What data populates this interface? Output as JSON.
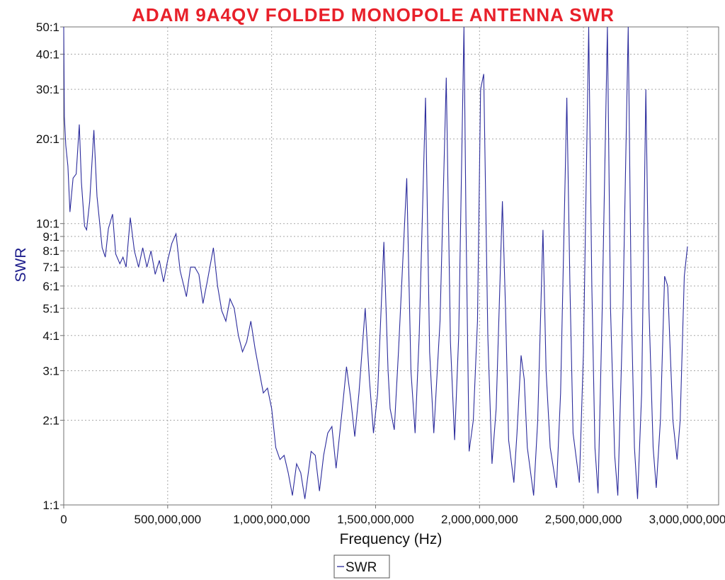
{
  "chart_data": {
    "type": "line",
    "title": "ADAM 9A4QV FOLDED MONOPOLE ANTENNA SWR",
    "xlabel": "Frequency (Hz)",
    "ylabel": "SWR",
    "x_scale": "linear",
    "y_scale": "log",
    "xlim": [
      0,
      3150000000
    ],
    "ylim": [
      1,
      50
    ],
    "grid": true,
    "legend_position": "bottom-center",
    "line_color": "#2b2b9c",
    "x_ticks": [
      {
        "value": 0,
        "label": "0"
      },
      {
        "value": 500000000,
        "label": "500,000,000"
      },
      {
        "value": 1000000000,
        "label": "1,000,000,000"
      },
      {
        "value": 1500000000,
        "label": "1,500,000,000"
      },
      {
        "value": 2000000000,
        "label": "2,000,000,000"
      },
      {
        "value": 2500000000,
        "label": "2,500,000,000"
      },
      {
        "value": 3000000000,
        "label": "3,000,000,000"
      }
    ],
    "y_ticks": [
      {
        "value": 1,
        "label": "1:1"
      },
      {
        "value": 2,
        "label": "2:1"
      },
      {
        "value": 3,
        "label": "3:1"
      },
      {
        "value": 4,
        "label": "4:1"
      },
      {
        "value": 5,
        "label": "5:1"
      },
      {
        "value": 6,
        "label": "6:1"
      },
      {
        "value": 7,
        "label": "7:1"
      },
      {
        "value": 8,
        "label": "8:1"
      },
      {
        "value": 9,
        "label": "9:1"
      },
      {
        "value": 10,
        "label": "10:1"
      },
      {
        "value": 20,
        "label": "20:1"
      },
      {
        "value": 30,
        "label": "30:1"
      },
      {
        "value": 40,
        "label": "40:1"
      },
      {
        "value": 50,
        "label": "50:1"
      }
    ],
    "series": [
      {
        "name": "SWR",
        "points": [
          [
            0,
            50
          ],
          [
            3000000,
            24
          ],
          [
            10000000,
            19
          ],
          [
            20000000,
            16
          ],
          [
            30000000,
            11
          ],
          [
            45000000,
            14.5
          ],
          [
            60000000,
            15
          ],
          [
            75000000,
            22.5
          ],
          [
            85000000,
            14
          ],
          [
            100000000,
            9.8
          ],
          [
            110000000,
            9.5
          ],
          [
            125000000,
            12
          ],
          [
            145000000,
            21.5
          ],
          [
            160000000,
            12.5
          ],
          [
            185000000,
            8.2
          ],
          [
            200000000,
            7.6
          ],
          [
            215000000,
            9.6
          ],
          [
            235000000,
            10.8
          ],
          [
            250000000,
            7.8
          ],
          [
            270000000,
            7.2
          ],
          [
            285000000,
            7.6
          ],
          [
            300000000,
            7.0
          ],
          [
            320000000,
            10.5
          ],
          [
            340000000,
            8.0
          ],
          [
            360000000,
            7.0
          ],
          [
            380000000,
            8.2
          ],
          [
            400000000,
            7.0
          ],
          [
            420000000,
            8.0
          ],
          [
            440000000,
            6.6
          ],
          [
            460000000,
            7.4
          ],
          [
            480000000,
            6.2
          ],
          [
            500000000,
            7.4
          ],
          [
            520000000,
            8.5
          ],
          [
            540000000,
            9.2
          ],
          [
            560000000,
            6.8
          ],
          [
            590000000,
            5.5
          ],
          [
            610000000,
            7.0
          ],
          [
            630000000,
            7.0
          ],
          [
            650000000,
            6.6
          ],
          [
            670000000,
            5.2
          ],
          [
            690000000,
            6.2
          ],
          [
            720000000,
            8.2
          ],
          [
            740000000,
            6.0
          ],
          [
            760000000,
            4.9
          ],
          [
            780000000,
            4.5
          ],
          [
            800000000,
            5.4
          ],
          [
            820000000,
            5.0
          ],
          [
            840000000,
            4.0
          ],
          [
            860000000,
            3.5
          ],
          [
            880000000,
            3.8
          ],
          [
            900000000,
            4.5
          ],
          [
            920000000,
            3.6
          ],
          [
            940000000,
            3.0
          ],
          [
            960000000,
            2.5
          ],
          [
            980000000,
            2.6
          ],
          [
            1000000000,
            2.2
          ],
          [
            1020000000,
            1.6
          ],
          [
            1040000000,
            1.45
          ],
          [
            1060000000,
            1.5
          ],
          [
            1080000000,
            1.3
          ],
          [
            1100000000,
            1.08
          ],
          [
            1120000000,
            1.4
          ],
          [
            1140000000,
            1.3
          ],
          [
            1160000000,
            1.05
          ],
          [
            1190000000,
            1.55
          ],
          [
            1210000000,
            1.5
          ],
          [
            1230000000,
            1.12
          ],
          [
            1250000000,
            1.5
          ],
          [
            1270000000,
            1.8
          ],
          [
            1290000000,
            1.9
          ],
          [
            1310000000,
            1.35
          ],
          [
            1340000000,
            2.2
          ],
          [
            1360000000,
            3.1
          ],
          [
            1380000000,
            2.4
          ],
          [
            1400000000,
            1.75
          ],
          [
            1420000000,
            2.5
          ],
          [
            1450000000,
            5.0
          ],
          [
            1470000000,
            2.8
          ],
          [
            1490000000,
            1.8
          ],
          [
            1510000000,
            2.5
          ],
          [
            1540000000,
            8.6
          ],
          [
            1560000000,
            3.0
          ],
          [
            1570000000,
            2.2
          ],
          [
            1590000000,
            1.85
          ],
          [
            1610000000,
            3.5
          ],
          [
            1650000000,
            14.5
          ],
          [
            1670000000,
            3.0
          ],
          [
            1690000000,
            1.8
          ],
          [
            1710000000,
            4.0
          ],
          [
            1740000000,
            28
          ],
          [
            1760000000,
            3.5
          ],
          [
            1780000000,
            1.8
          ],
          [
            1810000000,
            4.5
          ],
          [
            1840000000,
            33
          ],
          [
            1860000000,
            3.8
          ],
          [
            1880000000,
            1.7
          ],
          [
            1900000000,
            4.0
          ],
          [
            1925000000,
            50
          ],
          [
            1935000000,
            10
          ],
          [
            1950000000,
            1.55
          ],
          [
            1970000000,
            2.0
          ],
          [
            1990000000,
            4.5
          ],
          [
            2005000000,
            30
          ],
          [
            2020000000,
            34
          ],
          [
            2040000000,
            4.0
          ],
          [
            2060000000,
            1.4
          ],
          [
            2080000000,
            2.2
          ],
          [
            2110000000,
            12
          ],
          [
            2125000000,
            5.0
          ],
          [
            2140000000,
            1.7
          ],
          [
            2165000000,
            1.2
          ],
          [
            2180000000,
            1.8
          ],
          [
            2200000000,
            3.4
          ],
          [
            2215000000,
            2.8
          ],
          [
            2230000000,
            1.6
          ],
          [
            2260000000,
            1.08
          ],
          [
            2280000000,
            2.0
          ],
          [
            2305000000,
            9.5
          ],
          [
            2320000000,
            3.0
          ],
          [
            2340000000,
            1.6
          ],
          [
            2370000000,
            1.15
          ],
          [
            2390000000,
            2.5
          ],
          [
            2420000000,
            28
          ],
          [
            2435000000,
            6.0
          ],
          [
            2450000000,
            1.8
          ],
          [
            2480000000,
            1.2
          ],
          [
            2500000000,
            3.5
          ],
          [
            2525000000,
            50
          ],
          [
            2540000000,
            6.0
          ],
          [
            2555000000,
            1.6
          ],
          [
            2570000000,
            1.1
          ],
          [
            2590000000,
            5.0
          ],
          [
            2615000000,
            50
          ],
          [
            2630000000,
            5.0
          ],
          [
            2650000000,
            1.5
          ],
          [
            2665000000,
            1.08
          ],
          [
            2690000000,
            5.0
          ],
          [
            2715000000,
            50
          ],
          [
            2730000000,
            5.0
          ],
          [
            2745000000,
            1.6
          ],
          [
            2760000000,
            1.05
          ],
          [
            2780000000,
            2.5
          ],
          [
            2800000000,
            30
          ],
          [
            2815000000,
            5.0
          ],
          [
            2835000000,
            1.6
          ],
          [
            2850000000,
            1.15
          ],
          [
            2870000000,
            2.0
          ],
          [
            2890000000,
            6.5
          ],
          [
            2905000000,
            6.0
          ],
          [
            2930000000,
            2.0
          ],
          [
            2950000000,
            1.45
          ],
          [
            2965000000,
            2.0
          ],
          [
            2985000000,
            6.5
          ],
          [
            3000000000,
            8.3
          ]
        ]
      }
    ]
  }
}
